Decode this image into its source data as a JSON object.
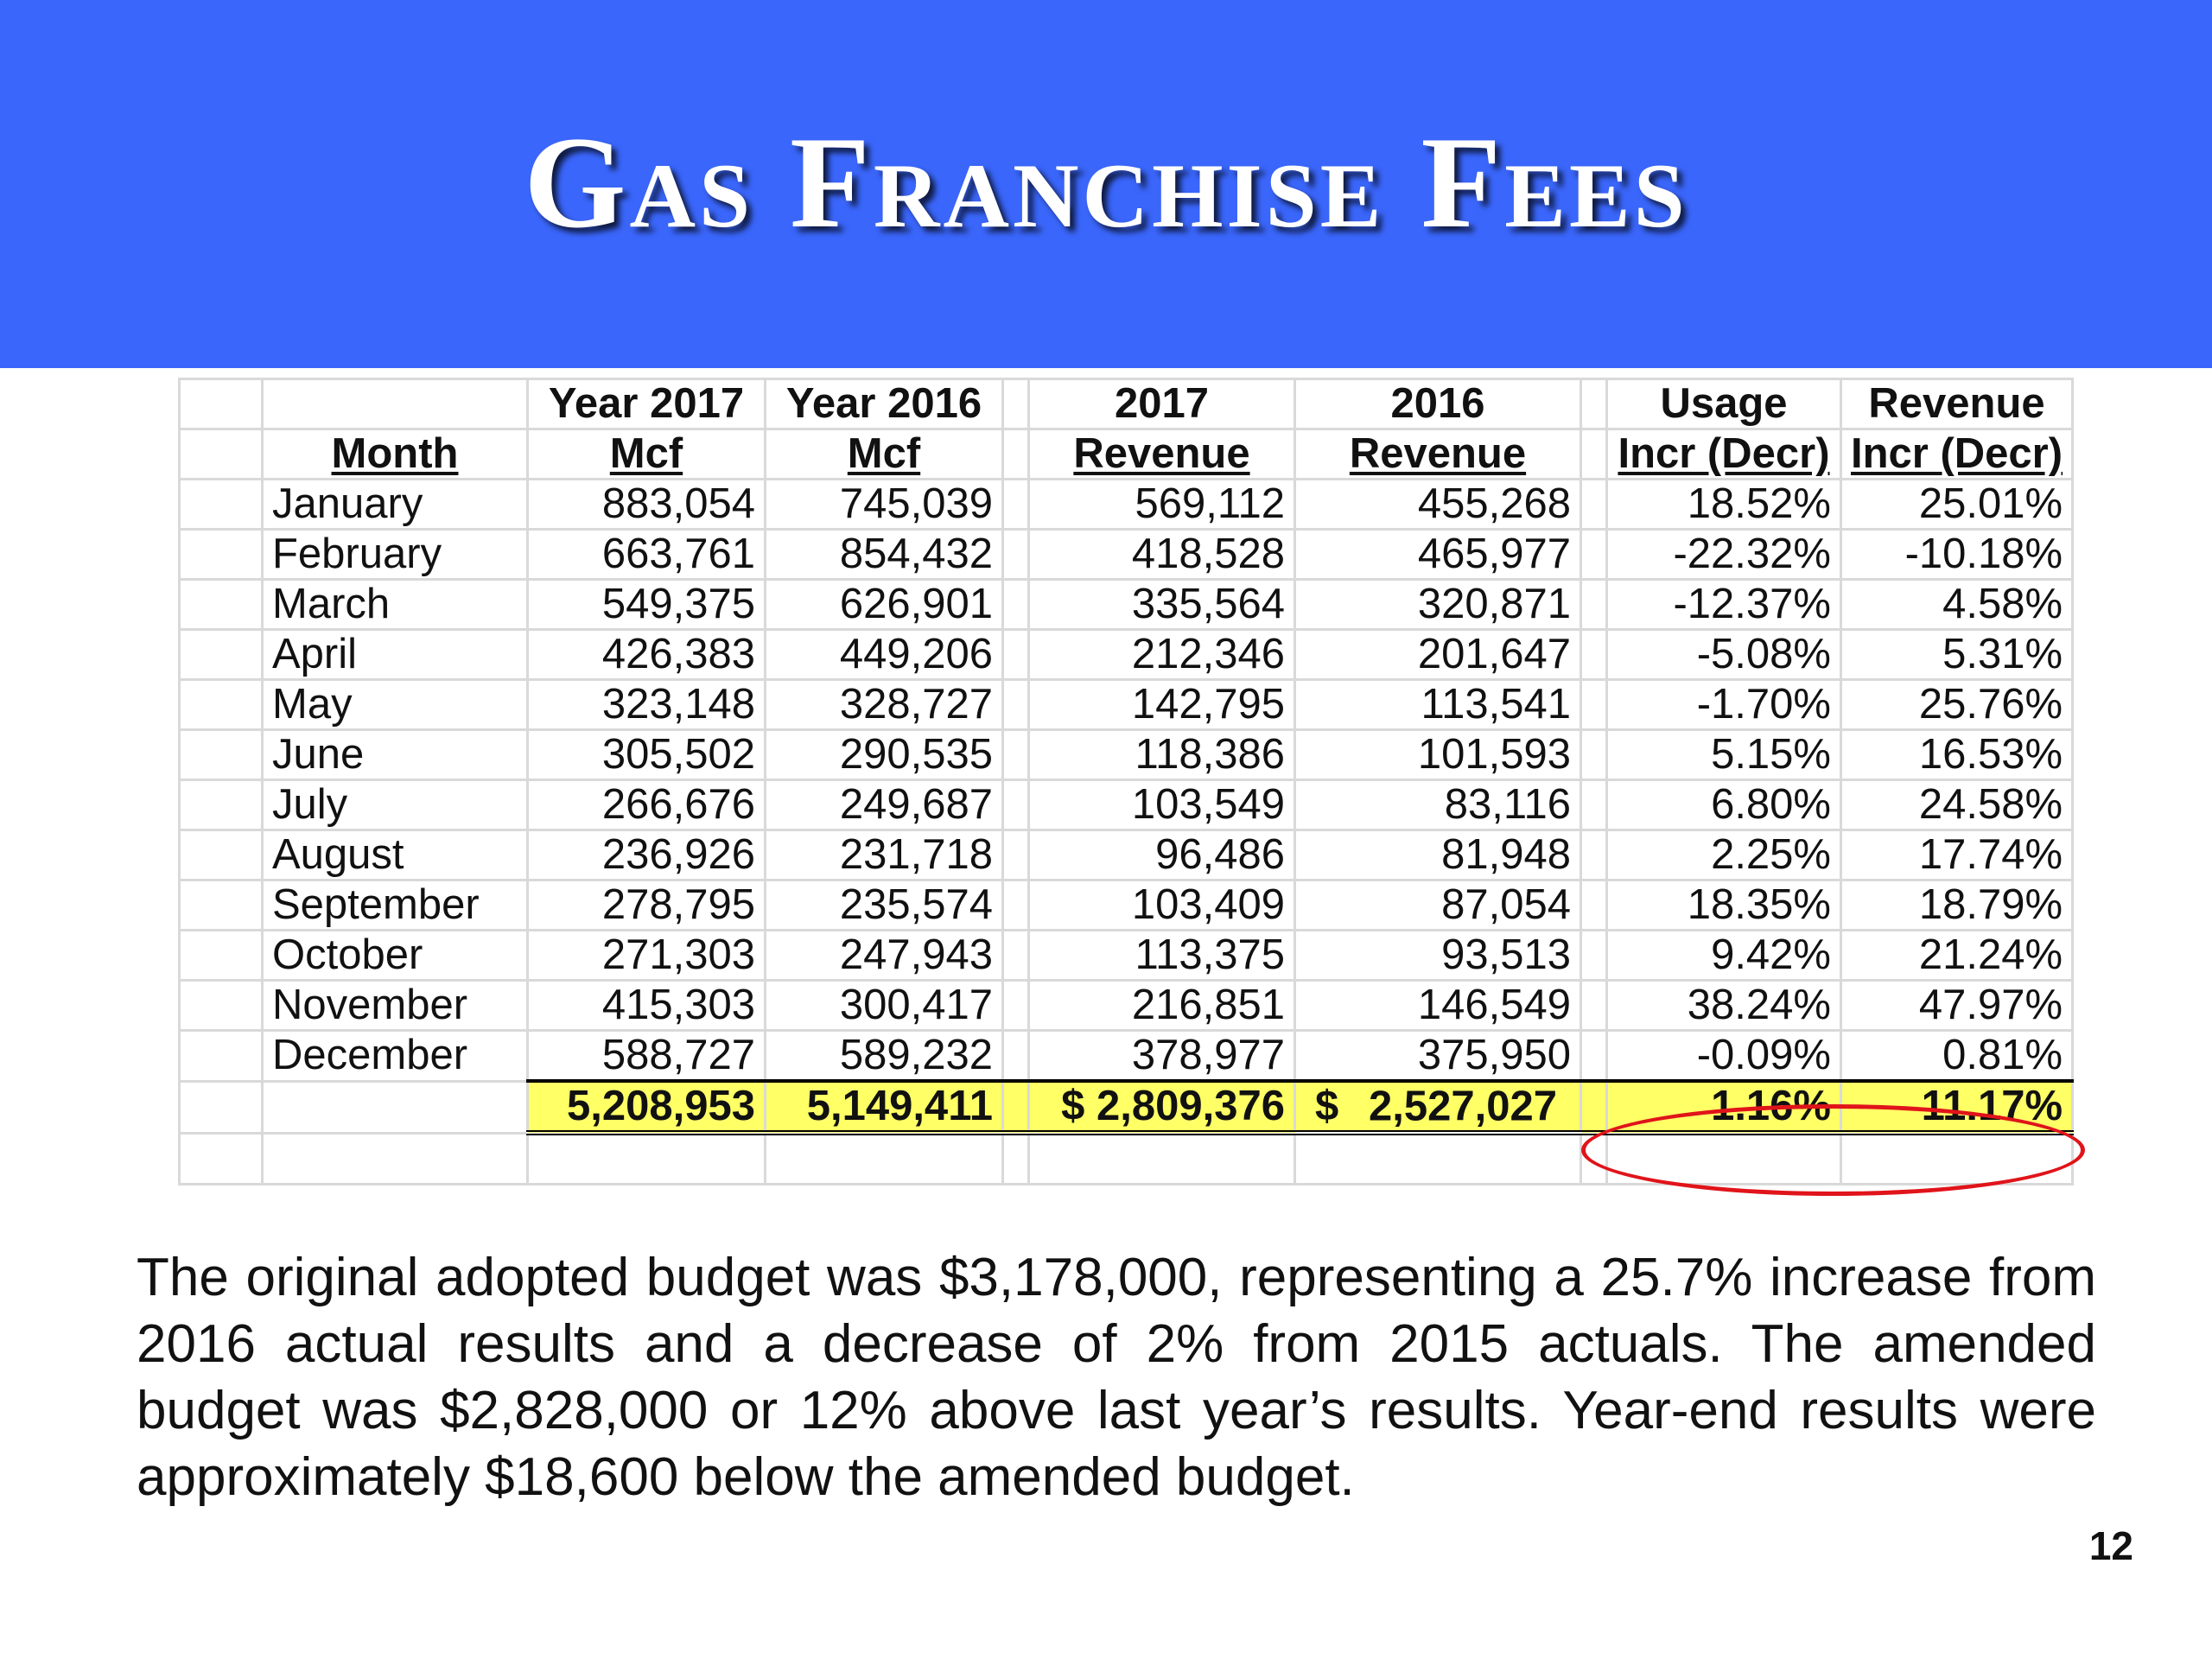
{
  "slide": {
    "title": "Gas Franchise Fees",
    "page_number": "12",
    "colors": {
      "banner": "#3a66fb",
      "total_row_highlight": "#ffff66",
      "ellipse": "#e0141a"
    }
  },
  "table": {
    "header_row1": [
      "",
      "Year 2017",
      "Year 2016",
      "2017",
      "2016",
      "Usage",
      "Revenue"
    ],
    "header_row2": [
      "Month",
      "Mcf",
      "Mcf",
      "Revenue",
      "Revenue",
      "Incr (Decr)",
      "Incr (Decr)"
    ],
    "rows": [
      [
        "January",
        "883,054",
        "745,039",
        "569,112",
        "455,268",
        "18.52%",
        "25.01%"
      ],
      [
        "February",
        "663,761",
        "854,432",
        "418,528",
        "465,977",
        "-22.32%",
        "-10.18%"
      ],
      [
        "March",
        "549,375",
        "626,901",
        "335,564",
        "320,871",
        "-12.37%",
        "4.58%"
      ],
      [
        "April",
        "426,383",
        "449,206",
        "212,346",
        "201,647",
        "-5.08%",
        "5.31%"
      ],
      [
        "May",
        "323,148",
        "328,727",
        "142,795",
        "113,541",
        "-1.70%",
        "25.76%"
      ],
      [
        "June",
        "305,502",
        "290,535",
        "118,386",
        "101,593",
        "5.15%",
        "16.53%"
      ],
      [
        "July",
        "266,676",
        "249,687",
        "103,549",
        "83,116",
        "6.80%",
        "24.58%"
      ],
      [
        "August",
        "236,926",
        "231,718",
        "96,486",
        "81,948",
        "2.25%",
        "17.74%"
      ],
      [
        "September",
        "278,795",
        "235,574",
        "103,409",
        "87,054",
        "18.35%",
        "18.79%"
      ],
      [
        "October",
        "271,303",
        "247,943",
        "113,375",
        "93,513",
        "9.42%",
        "21.24%"
      ],
      [
        "November",
        "415,303",
        "300,417",
        "216,851",
        "146,549",
        "38.24%",
        "47.97%"
      ],
      [
        "December",
        "588,727",
        "589,232",
        "378,977",
        "375,950",
        "-0.09%",
        "0.81%"
      ]
    ],
    "totals": {
      "mcf_2017": "5,208,953",
      "mcf_2016": "5,149,411",
      "revenue_2017": "$ 2,809,376",
      "revenue_2016_symbol": "$",
      "revenue_2016_amount": "2,527,027",
      "usage_change": "1.16%",
      "revenue_change": "11.17%"
    }
  },
  "paragraph": "The original adopted budget was $3,178,000, representing a 25.7% increase from 2016 actual results and a decrease of 2% from 2015 actuals.  The amended budget was $2,828,000 or 12% above last year’s results.  Year-end results were approximately $18,600 below the amended budget."
}
